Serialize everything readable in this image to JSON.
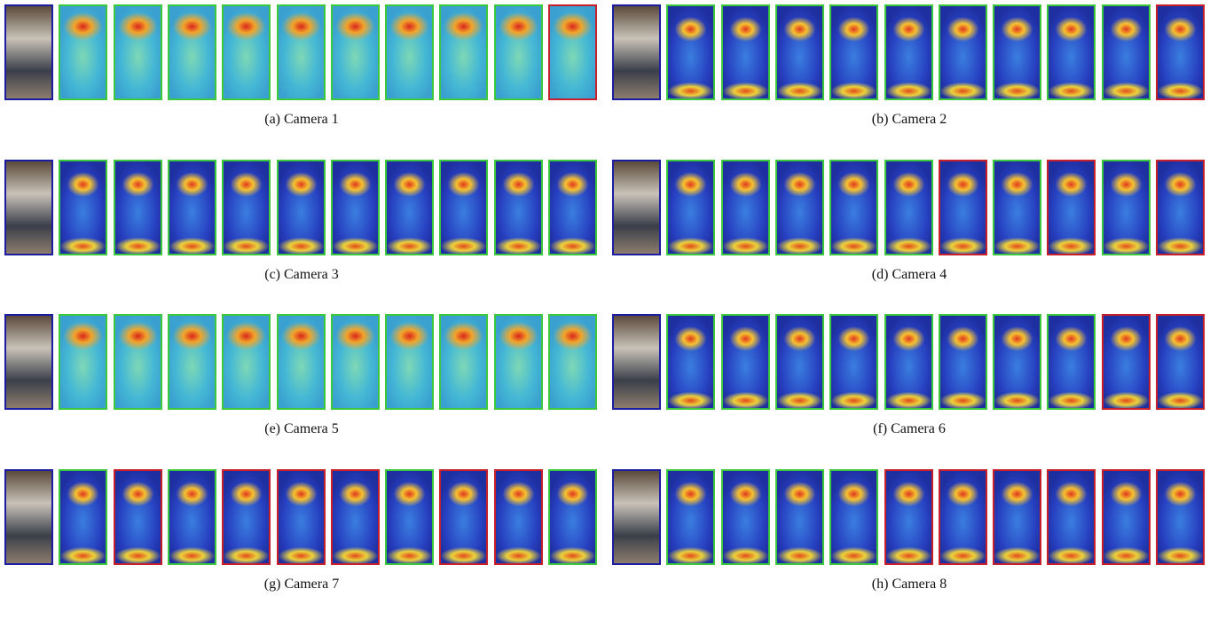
{
  "panels": [
    {
      "caption": "(a) Camera 1",
      "query_color": "#1c1ca3",
      "results": [
        "#3cc83c",
        "#3cc83c",
        "#3cc83c",
        "#3cc83c",
        "#3cc83c",
        "#3cc83c",
        "#3cc83c",
        "#3cc83c",
        "#3cc83c",
        "#c8202a"
      ]
    },
    {
      "caption": "(b) Camera 2",
      "query_color": "#1c1ca3",
      "results": [
        "#3cc83c",
        "#3cc83c",
        "#3cc83c",
        "#3cc83c",
        "#3cc83c",
        "#3cc83c",
        "#3cc83c",
        "#3cc83c",
        "#3cc83c",
        "#c8202a"
      ]
    },
    {
      "caption": "(c) Camera 3",
      "query_color": "#1c1ca3",
      "results": [
        "#3cc83c",
        "#3cc83c",
        "#3cc83c",
        "#3cc83c",
        "#3cc83c",
        "#3cc83c",
        "#3cc83c",
        "#3cc83c",
        "#3cc83c",
        "#3cc83c"
      ]
    },
    {
      "caption": "(d) Camera 4",
      "query_color": "#1c1ca3",
      "results": [
        "#3cc83c",
        "#3cc83c",
        "#3cc83c",
        "#3cc83c",
        "#3cc83c",
        "#c8202a",
        "#3cc83c",
        "#c8202a",
        "#3cc83c",
        "#c8202a"
      ]
    },
    {
      "caption": "(e) Camera 5",
      "query_color": "#1c1ca3",
      "results": [
        "#3cc83c",
        "#3cc83c",
        "#3cc83c",
        "#3cc83c",
        "#3cc83c",
        "#3cc83c",
        "#3cc83c",
        "#3cc83c",
        "#3cc83c",
        "#3cc83c"
      ]
    },
    {
      "caption": "(f) Camera 6",
      "query_color": "#1c1ca3",
      "results": [
        "#3cc83c",
        "#3cc83c",
        "#3cc83c",
        "#3cc83c",
        "#3cc83c",
        "#3cc83c",
        "#3cc83c",
        "#3cc83c",
        "#c8202a",
        "#c8202a"
      ]
    },
    {
      "caption": "(g) Camera 7",
      "query_color": "#1c1ca3",
      "results": [
        "#3cc83c",
        "#c8202a",
        "#3cc83c",
        "#c8202a",
        "#c8202a",
        "#c8202a",
        "#3cc83c",
        "#c8202a",
        "#c8202a",
        "#3cc83c"
      ]
    },
    {
      "caption": "(h) Camera 8",
      "query_color": "#1c1ca3",
      "results": [
        "#3cc83c",
        "#3cc83c",
        "#3cc83c",
        "#3cc83c",
        "#c8202a",
        "#c8202a",
        "#c8202a",
        "#c8202a",
        "#c8202a",
        "#c8202a"
      ]
    }
  ]
}
